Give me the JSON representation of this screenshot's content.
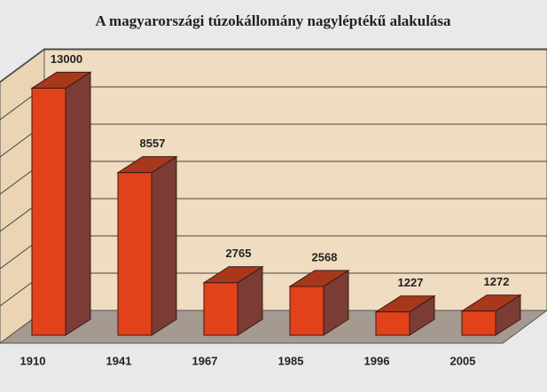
{
  "chart_data": {
    "type": "bar3d",
    "title": "A magyarországi túzokállomány nagyléptékű alakulása",
    "categories": [
      "1910",
      "1941",
      "1967",
      "1985",
      "1996",
      "2005"
    ],
    "values": [
      13000,
      8557,
      2765,
      2568,
      1227,
      1272
    ],
    "color": "#e2421a",
    "ylim": [
      0,
      14000
    ]
  }
}
